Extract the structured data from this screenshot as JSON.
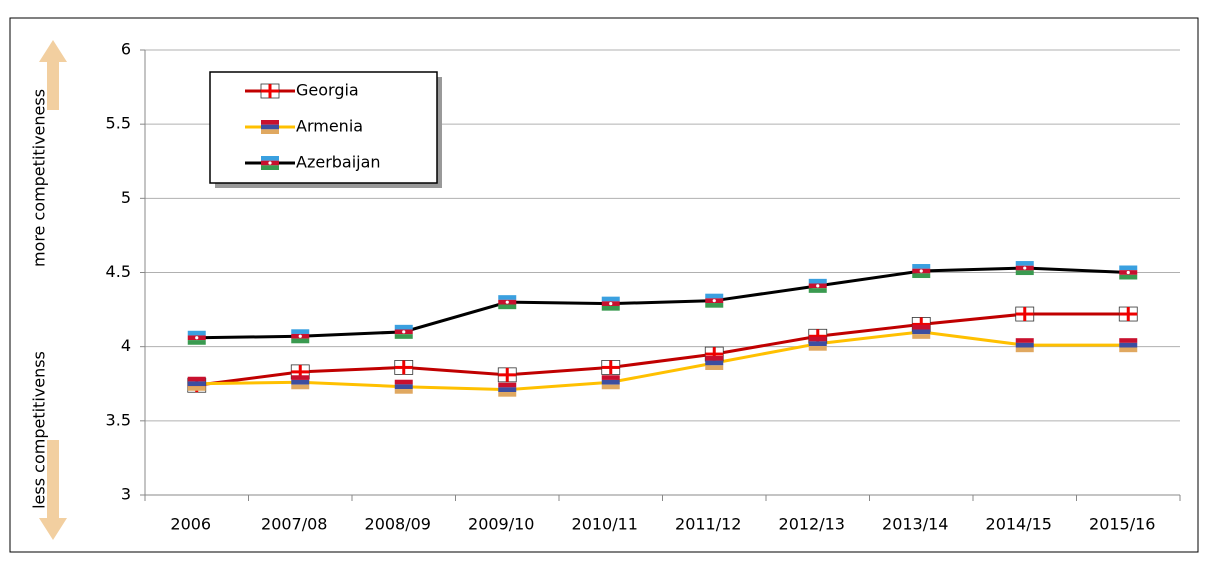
{
  "chart_data": {
    "type": "line",
    "ylabel_top": "more competitiveness",
    "ylabel_bottom": "less competitivenss",
    "categories": [
      "2006",
      "2007/08",
      "2008/09",
      "2009/10",
      "2010/11",
      "2011/12",
      "2012/13",
      "2013/14",
      "2014/15",
      "2015/16"
    ],
    "series": [
      {
        "name": "Georgia",
        "color": "#c00000",
        "values": [
          3.74,
          3.83,
          3.86,
          3.81,
          3.86,
          3.95,
          4.07,
          4.15,
          4.22,
          4.22
        ]
      },
      {
        "name": "Armenia",
        "color": "#ffc000",
        "values": [
          3.75,
          3.76,
          3.73,
          3.71,
          3.76,
          3.89,
          4.02,
          4.1,
          4.01,
          4.01
        ]
      },
      {
        "name": "Azerbaijan",
        "color": "#000000",
        "values": [
          4.06,
          4.07,
          4.1,
          4.3,
          4.29,
          4.31,
          4.41,
          4.51,
          4.53,
          4.5
        ]
      }
    ],
    "ylim": [
      3,
      6
    ],
    "yticks": [
      3,
      3.5,
      4,
      4.5,
      5,
      5.5,
      6
    ],
    "grid": true,
    "legend": "upper left"
  }
}
